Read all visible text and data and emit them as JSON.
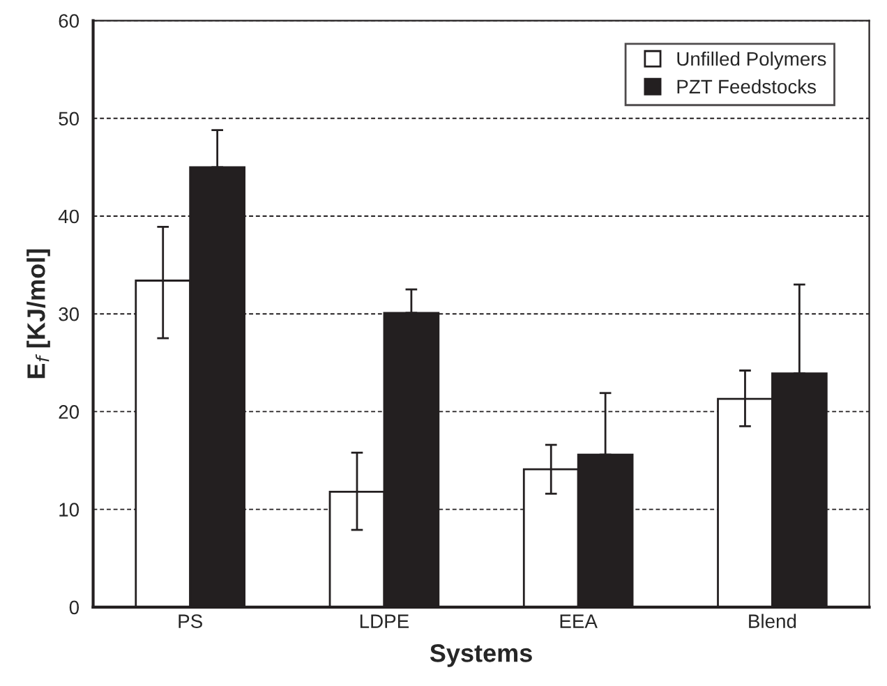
{
  "chart_data": {
    "type": "bar",
    "xlabel": "Systems",
    "ylabel": "E$_{f}$ [KJ/mol]",
    "categories": [
      "PS",
      "LDPE",
      "EEA",
      "Blend"
    ],
    "series": [
      {
        "name": "Unfilled Polymers",
        "color": "#ffffff",
        "values": [
          33.4,
          11.8,
          14.1,
          21.3
        ],
        "errors": [
          [
            27.5,
            38.9
          ],
          [
            7.9,
            15.8
          ],
          [
            11.6,
            16.6
          ],
          [
            18.5,
            24.2
          ]
        ]
      },
      {
        "name": "PZT Feedstocks",
        "color": "#231f20",
        "values": [
          45.0,
          30.1,
          15.6,
          23.9
        ],
        "errors": [
          [
            45.0,
            48.8
          ],
          [
            30.1,
            32.5
          ],
          [
            15.6,
            21.9
          ],
          [
            23.9,
            33.0
          ]
        ]
      }
    ],
    "ylim": [
      0,
      60
    ],
    "yticks": [
      0,
      10,
      20,
      30,
      40,
      50,
      60
    ],
    "grid": "y",
    "legend": "top right"
  }
}
